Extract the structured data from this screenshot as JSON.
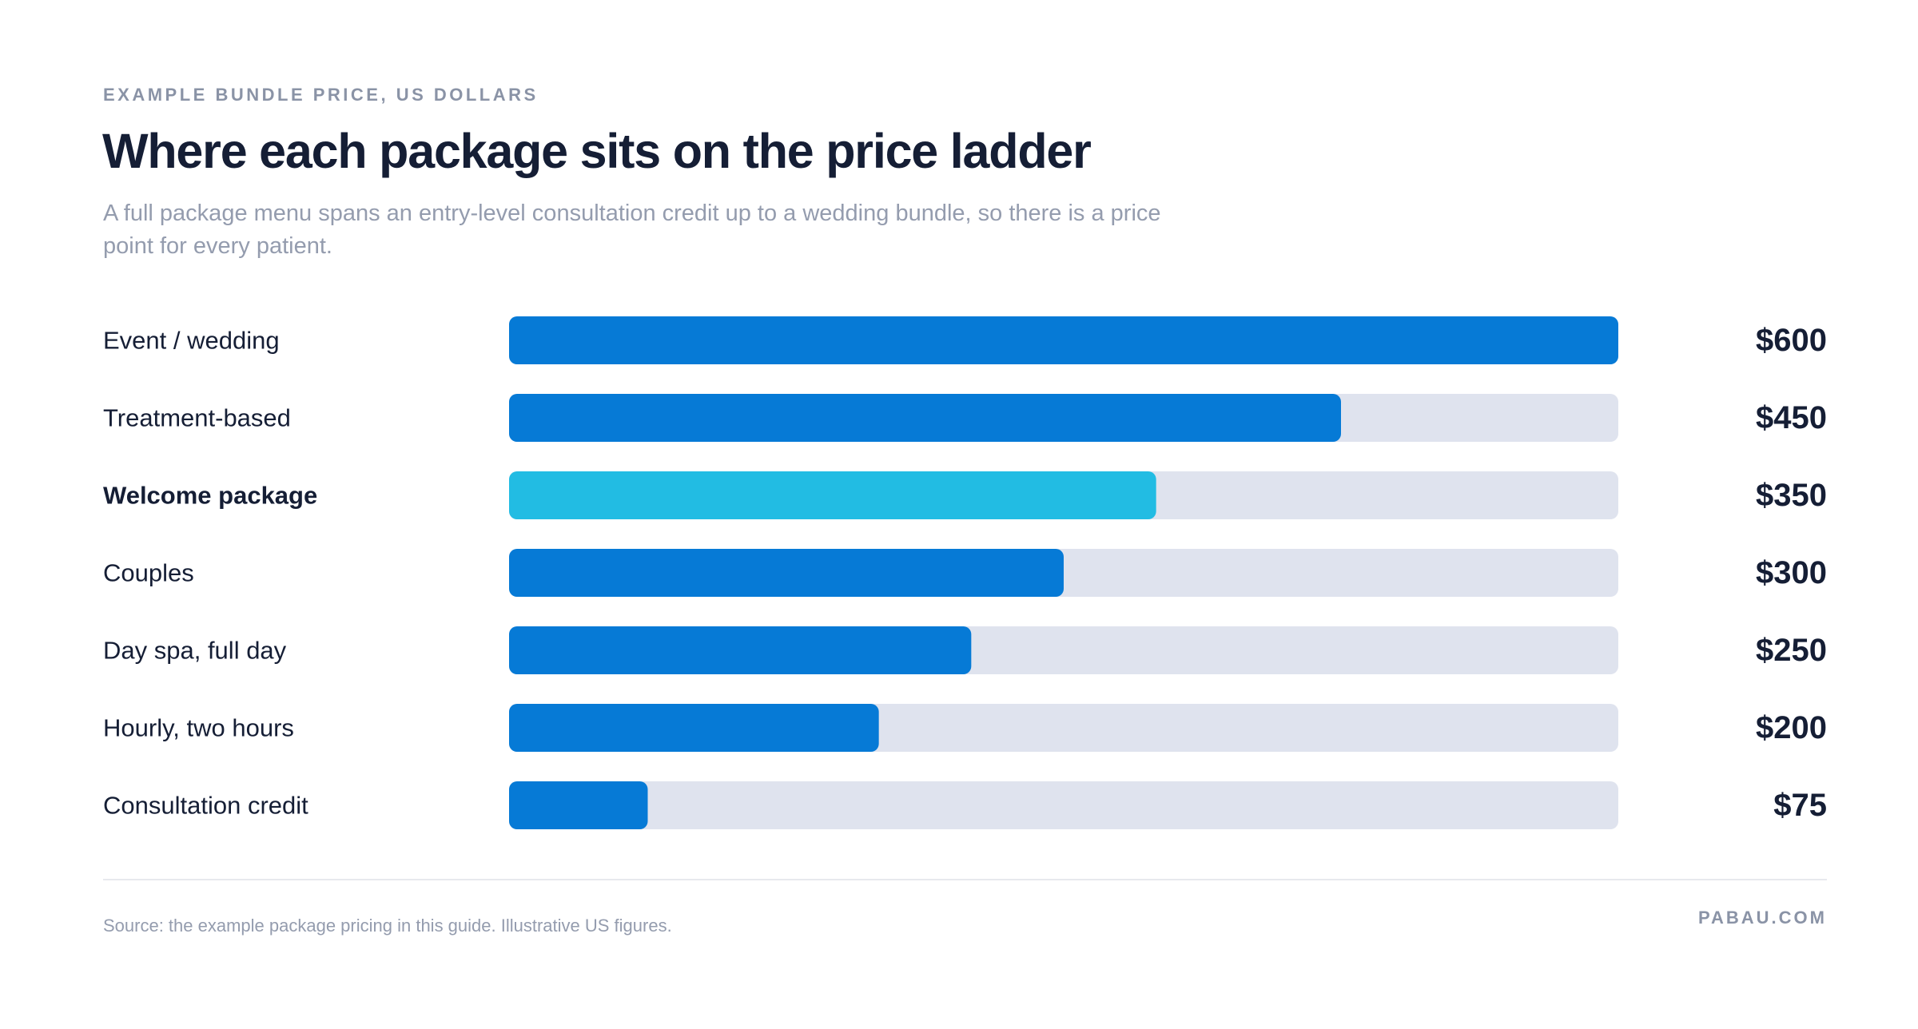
{
  "header": {
    "eyebrow": "EXAMPLE BUNDLE PRICE, US DOLLARS",
    "title": "Where each package sits on the price ladder",
    "subtitle": "A full package menu spans an entry-level consultation credit up to a wedding bundle, so there is a price point for every patient."
  },
  "chart_data": {
    "type": "bar",
    "orientation": "horizontal",
    "categories": [
      "Event / wedding",
      "Treatment-based",
      "Welcome package",
      "Couples",
      "Day spa, full day",
      "Hourly, two hours",
      "Consultation credit"
    ],
    "values": [
      600,
      450,
      350,
      300,
      250,
      200,
      75
    ],
    "value_labels": [
      "$600",
      "$450",
      "$350",
      "$300",
      "$250",
      "$200",
      "$75"
    ],
    "highlight_category": "Welcome package",
    "xlim": [
      0,
      600
    ],
    "grid": false,
    "colors": {
      "bar": "#067ad6",
      "highlight": "#22bce3",
      "track": "#dfe3ee"
    }
  },
  "footer": {
    "source": "Source: the example package pricing in this guide. Illustrative US figures.",
    "brand": "PABAU.COM"
  }
}
